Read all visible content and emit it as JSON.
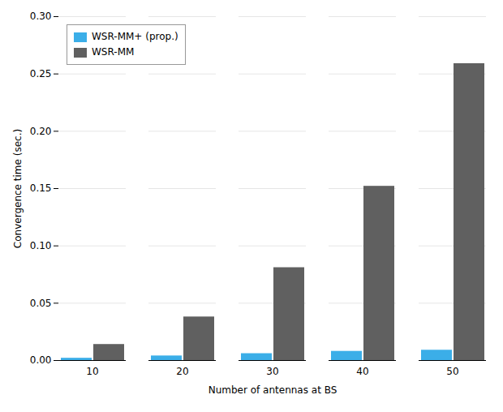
{
  "chart_data": {
    "type": "bar",
    "categories": [
      10,
      20,
      30,
      40,
      50
    ],
    "series": [
      {
        "name": "WSR-MM+ (prop.)",
        "color": "#3BAEE8",
        "values": [
          0.002,
          0.004,
          0.006,
          0.008,
          0.009
        ]
      },
      {
        "name": "WSR-MM",
        "color": "#606060",
        "values": [
          0.014,
          0.038,
          0.081,
          0.152,
          0.259
        ]
      }
    ],
    "xlabel": "Number of antennas at BS",
    "ylabel": "Convergence time (sec.)",
    "ylim": [
      0,
      0.3
    ],
    "yticks": [
      {
        "value": 0,
        "label": "0.00"
      },
      {
        "value": 0.05,
        "label": "0.05"
      },
      {
        "value": 0.1,
        "label": "0.10"
      },
      {
        "value": 0.15,
        "label": "0.15"
      },
      {
        "value": 0.2,
        "label": "0.20"
      },
      {
        "value": 0.25,
        "label": "0.25"
      },
      {
        "value": 0.3,
        "label": "0.30"
      }
    ],
    "grid": true,
    "legend": "upper left"
  }
}
